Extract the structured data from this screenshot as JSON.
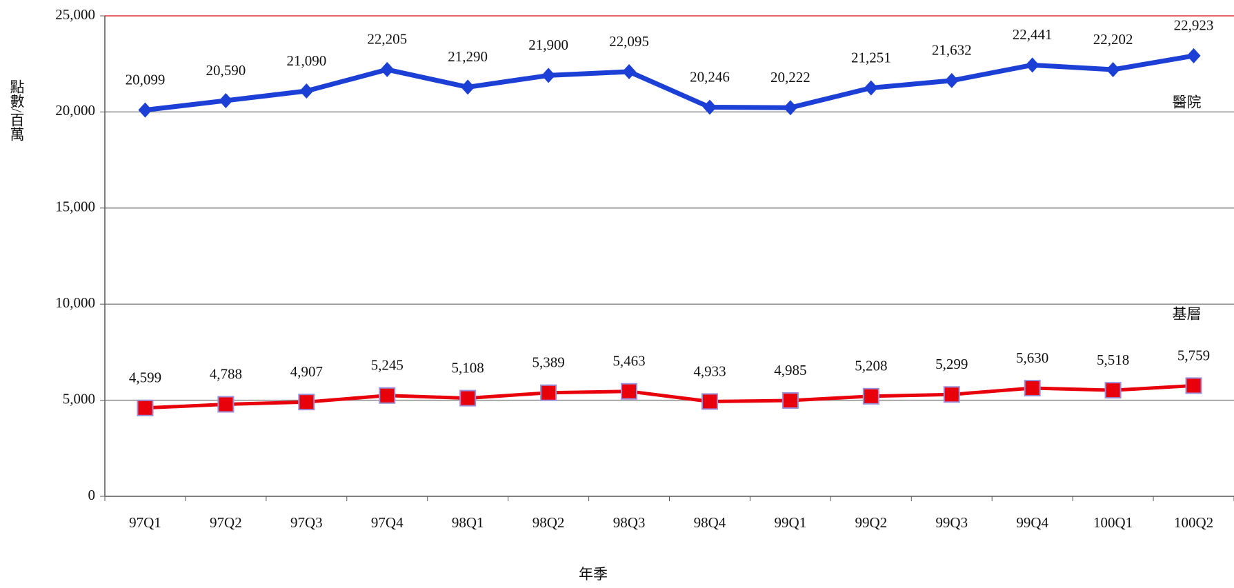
{
  "chart_data": {
    "type": "line",
    "y_label": "點數/百萬",
    "x_label": "年季",
    "categories": [
      "97Q1",
      "97Q2",
      "97Q3",
      "97Q4",
      "98Q1",
      "98Q2",
      "98Q3",
      "98Q4",
      "99Q1",
      "99Q2",
      "99Q3",
      "99Q4",
      "100Q1",
      "100Q2"
    ],
    "series": [
      {
        "name": "醫院",
        "color": "#1c3fd6",
        "marker": "diamond",
        "values": [
          20099,
          20590,
          21090,
          22205,
          21290,
          21900,
          22095,
          20246,
          20222,
          21251,
          21632,
          22441,
          22202,
          22923
        ],
        "value_labels": [
          "20,099",
          "20,590",
          "21,090",
          "22,205",
          "21,290",
          "21,900",
          "22,095",
          "20,246",
          "20,222",
          "21,251",
          "21,632",
          "22,441",
          "22,202",
          "22,923"
        ]
      },
      {
        "name": "基層",
        "color": "#e8000b",
        "marker": "square",
        "values": [
          4599,
          4788,
          4907,
          5245,
          5108,
          5389,
          5463,
          4933,
          4985,
          5208,
          5299,
          5630,
          5518,
          5759
        ],
        "value_labels": [
          "4,599",
          "4,788",
          "4,907",
          "5,245",
          "5,108",
          "5,389",
          "5,463",
          "4,933",
          "4,985",
          "5,208",
          "5,299",
          "5,630",
          "5,518",
          "5,759"
        ]
      }
    ],
    "ylim": [
      0,
      25000
    ],
    "yticks": [
      0,
      {
        "value": 5000,
        "label": "5,000"
      },
      {
        "value": 10000,
        "label": "10,000"
      },
      {
        "value": 15000,
        "label": "15,000"
      },
      {
        "value": 20000,
        "label": "20,000"
      },
      {
        "value": 25000,
        "label": "25,000"
      }
    ],
    "grid": true
  }
}
